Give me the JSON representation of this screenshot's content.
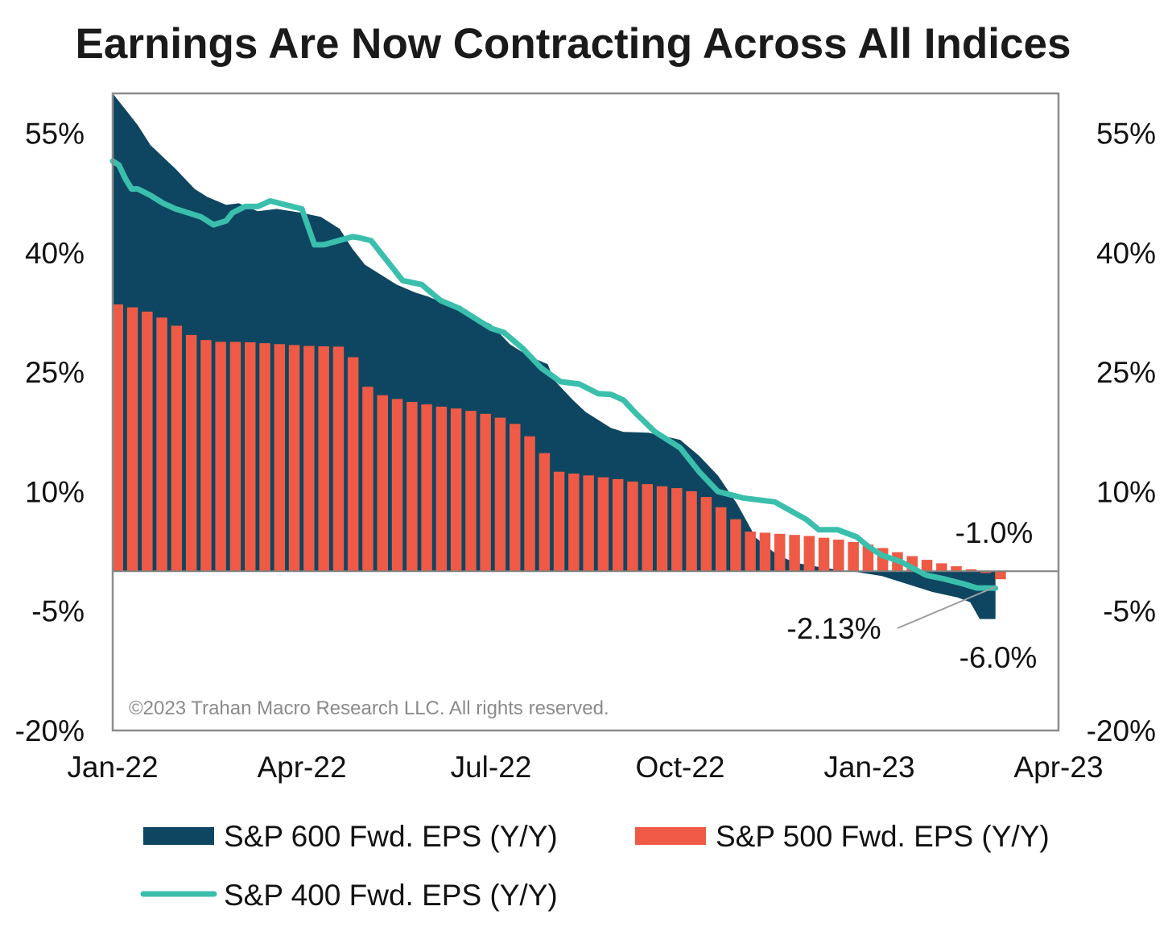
{
  "chart_data": {
    "type": "bar",
    "title": "Earnings Are Now Contracting Across All Indices",
    "ylim": [
      -20,
      60
    ],
    "yticks": [
      55,
      40,
      25,
      10,
      -5,
      -20
    ],
    "ytick_labels": [
      "55%",
      "40%",
      "25%",
      "10%",
      "-5%",
      "-20%"
    ],
    "xtick_labels": [
      "Jan-22",
      "Apr-22",
      "Jul-22",
      "Oct-22",
      "Jan-23",
      "Apr-23"
    ],
    "x_unit": "months since Jan-22",
    "xlim": [
      0,
      15
    ],
    "series": [
      {
        "name": "S&P 600 Fwd. EPS (Y/Y)",
        "type": "area",
        "color": "#0e4661",
        "x": [
          0,
          0.2,
          0.4,
          0.6,
          0.8,
          1.0,
          1.3,
          1.5,
          1.8,
          2.0,
          2.3,
          2.6,
          3.0,
          3.3,
          3.6,
          3.8,
          4.0,
          4.2,
          4.5,
          4.8,
          5.0,
          5.3,
          5.6,
          6.0,
          6.3,
          6.6,
          6.9,
          7.0,
          7.3,
          7.5,
          7.9,
          8.1,
          8.5,
          9.0,
          9.3,
          9.6,
          9.9,
          10.2,
          10.5,
          10.8,
          11.3,
          11.8,
          12.2,
          12.6,
          13.0,
          13.4,
          13.6,
          13.75,
          13.9,
          14.0
        ],
        "values": [
          60,
          58,
          56,
          53.5,
          52,
          50.5,
          48,
          47,
          46,
          46.2,
          45.2,
          45.5,
          45,
          44.5,
          43,
          40.5,
          38.5,
          37.5,
          36,
          35,
          34.5,
          33.5,
          32.5,
          31,
          28.5,
          27,
          26,
          24,
          21.5,
          20,
          18,
          17.5,
          17.4,
          16.5,
          14.5,
          12,
          8.5,
          4.2,
          2.3,
          1.1,
          0.4,
          -0.1,
          -0.6,
          -1.6,
          -2.6,
          -3.3,
          -3.9,
          -6.0,
          -6.0,
          -6.0
        ]
      },
      {
        "name": "S&P 500 Fwd. EPS (Y/Y)",
        "type": "bar",
        "color": "#ee5a45",
        "x": [
          0,
          0.2,
          0.4,
          0.6,
          0.8,
          1.0,
          1.2,
          1.5,
          2.0,
          3.0,
          3.5,
          3.8,
          3.85,
          4.0,
          4.5,
          5.0,
          5.5,
          6.0,
          6.3,
          6.6,
          6.8,
          7.0,
          7.5,
          8.0,
          8.5,
          9.0,
          9.3,
          9.7,
          10.0,
          10.5,
          11.0,
          11.5,
          12.0,
          12.5,
          13.0,
          13.5,
          13.7,
          14.0
        ],
        "values": [
          33.5,
          33.2,
          32.8,
          32.2,
          31.5,
          30.5,
          29.5,
          28.8,
          28.8,
          28.3,
          28.2,
          26.5,
          25.5,
          22.5,
          21.5,
          20.8,
          20.3,
          19.5,
          18.5,
          16.5,
          14.5,
          12.5,
          12.0,
          11.5,
          10.8,
          10.3,
          9.5,
          7.3,
          5.0,
          4.7,
          4.4,
          3.9,
          3.2,
          2.1,
          1.1,
          0.3,
          0.0,
          -1.0
        ]
      },
      {
        "name": "S&P 400 Fwd. EPS (Y/Y)",
        "type": "line",
        "color": "#3bbfad",
        "x": [
          0,
          0.1,
          0.2,
          0.3,
          0.4,
          0.6,
          0.8,
          1.0,
          1.2,
          1.4,
          1.6,
          1.8,
          1.9,
          2.1,
          2.3,
          2.5,
          3.0,
          3.2,
          3.35,
          3.8,
          3.9,
          4.1,
          4.3,
          4.6,
          4.9,
          5.2,
          5.5,
          5.8,
          6.0,
          6.2,
          6.5,
          6.8,
          7.1,
          7.4,
          7.7,
          7.9,
          8.1,
          8.3,
          8.6,
          9.0,
          9.3,
          9.6,
          10.0,
          10.2,
          10.5,
          11.0,
          11.2,
          11.5,
          11.8,
          12.0,
          12.2,
          12.5,
          12.9,
          13.2,
          13.5,
          13.7,
          14.0
        ],
        "values": [
          51.5,
          51.0,
          49.3,
          48.0,
          48.0,
          47.2,
          46.2,
          45.5,
          45.0,
          44.5,
          43.5,
          44.0,
          45.0,
          45.8,
          45.8,
          46.5,
          45.5,
          41.0,
          41.0,
          42.0,
          41.9,
          41.5,
          39.5,
          36.5,
          36.0,
          34.0,
          33.0,
          31.5,
          30.5,
          30.0,
          28.0,
          25.5,
          23.8,
          23.5,
          22.3,
          22.2,
          21.5,
          19.8,
          17.5,
          15.5,
          12.5,
          10.0,
          9.2,
          9.0,
          8.7,
          6.5,
          5.2,
          5.2,
          4.3,
          3.0,
          2.0,
          1.2,
          -0.5,
          -1.0,
          -1.6,
          -2.1,
          -2.13
        ]
      }
    ],
    "annotations": {
      "sp500_last": "-1.0%",
      "sp400_last": "-2.13%",
      "sp600_last": "-6.0%"
    },
    "copyright": "©2023 Trahan Macro Research LLC. All rights reserved.",
    "legend": {
      "placement": "bottom",
      "items": [
        "S&P 600 Fwd. EPS (Y/Y)",
        "S&P 500 Fwd. EPS (Y/Y)",
        "S&P 400 Fwd. EPS (Y/Y)"
      ]
    }
  }
}
